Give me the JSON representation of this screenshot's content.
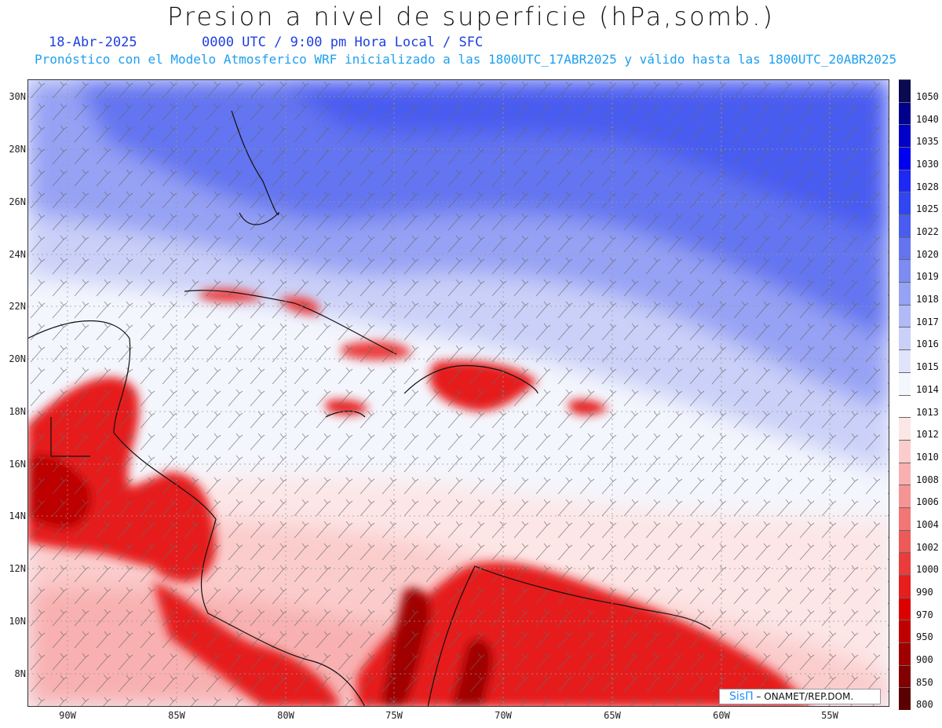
{
  "title": "Presion a nivel de superficie (hPa,somb.)",
  "date": "18-Abr-2025",
  "valid_time": "0000 UTC / 9:00 pm Hora Local / SFC",
  "forecast_note": "Pronóstico con el Modelo Atmosferico WRF inicializado a las 1800UTC_17ABR2025 y válido hasta las  1800UTC_20ABR2025",
  "lat_labels": [
    "30N",
    "28N",
    "26N",
    "24N",
    "22N",
    "20N",
    "18N",
    "16N",
    "14N",
    "12N",
    "10N",
    "8N"
  ],
  "lon_labels": [
    "90W",
    "85W",
    "80W",
    "75W",
    "70W",
    "65W",
    "60W",
    "55W"
  ],
  "legend": [
    {
      "label": "1050",
      "color": "#0a0a50"
    },
    {
      "label": "1040",
      "color": "#00008c"
    },
    {
      "label": "1035",
      "color": "#0000c8"
    },
    {
      "label": "1030",
      "color": "#0000f0"
    },
    {
      "label": "1028",
      "color": "#1e28f5"
    },
    {
      "label": "1025",
      "color": "#3246f0"
    },
    {
      "label": "1022",
      "color": "#4a5cf0"
    },
    {
      "label": "1020",
      "color": "#6474f0"
    },
    {
      "label": "1019",
      "color": "#7c8cf2"
    },
    {
      "label": "1018",
      "color": "#96a2f4"
    },
    {
      "label": "1017",
      "color": "#b0baf6"
    },
    {
      "label": "1016",
      "color": "#cad0f8"
    },
    {
      "label": "1015",
      "color": "#e0e4fa"
    },
    {
      "label": "1014",
      "color": "#f4f6fd"
    },
    {
      "label": "1013",
      "color": "#ffffff"
    },
    {
      "label": "1012",
      "color": "#fde6e6"
    },
    {
      "label": "1010",
      "color": "#fbcccc"
    },
    {
      "label": "1008",
      "color": "#f8b0b0"
    },
    {
      "label": "1006",
      "color": "#f59494"
    },
    {
      "label": "1004",
      "color": "#f27676"
    },
    {
      "label": "1002",
      "color": "#ee5a5a"
    },
    {
      "label": "1000",
      "color": "#eb3c3c"
    },
    {
      "label": "990",
      "color": "#e61e1e"
    },
    {
      "label": "970",
      "color": "#dc0000"
    },
    {
      "label": "950",
      "color": "#be0000"
    },
    {
      "label": "900",
      "color": "#a00000"
    },
    {
      "label": "850",
      "color": "#820000"
    },
    {
      "label": "800",
      "color": "#5a0000"
    }
  ],
  "credit": {
    "brand": "SisΠ",
    "text": " ONAMET/REP.DOM."
  }
}
